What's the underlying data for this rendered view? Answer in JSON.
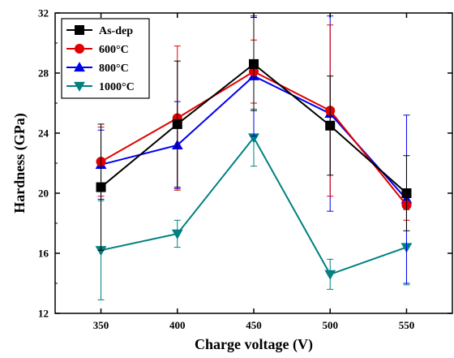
{
  "chart_data": {
    "type": "line",
    "title": "",
    "xlabel": "Charge voltage (V)",
    "ylabel": "Hardness (GPa)",
    "x": [
      350,
      400,
      450,
      500,
      550
    ],
    "xlim": [
      320,
      580
    ],
    "ylim": [
      12,
      32
    ],
    "xticks": [
      350,
      400,
      450,
      500,
      550
    ],
    "yticks": [
      12,
      16,
      20,
      24,
      28,
      32
    ],
    "grid": false,
    "legend_position": "top-left",
    "series": [
      {
        "name": "As-dep",
        "color": "#000000",
        "marker": "square",
        "values": [
          20.4,
          24.6,
          28.6,
          24.5,
          20.0
        ],
        "errors": [
          4.2,
          4.2,
          3.1,
          3.3,
          2.5
        ]
      },
      {
        "name": "600°C",
        "color": "#e00000",
        "marker": "circle",
        "values": [
          22.1,
          25.0,
          28.1,
          25.5,
          19.2
        ],
        "errors": [
          2.3,
          4.8,
          2.1,
          5.7,
          1.0
        ]
      },
      {
        "name": "800°C",
        "color": "#0000ee",
        "marker": "triangle-up",
        "values": [
          21.9,
          23.2,
          27.8,
          25.3,
          19.6
        ],
        "errors": [
          2.3,
          2.9,
          4.0,
          6.5,
          5.6
        ]
      },
      {
        "name": "1000°C",
        "color": "#008080",
        "marker": "triangle-down",
        "values": [
          16.2,
          17.3,
          23.7,
          14.6,
          16.4
        ],
        "errors": [
          3.3,
          0.9,
          1.9,
          1.0,
          2.5
        ]
      }
    ]
  }
}
